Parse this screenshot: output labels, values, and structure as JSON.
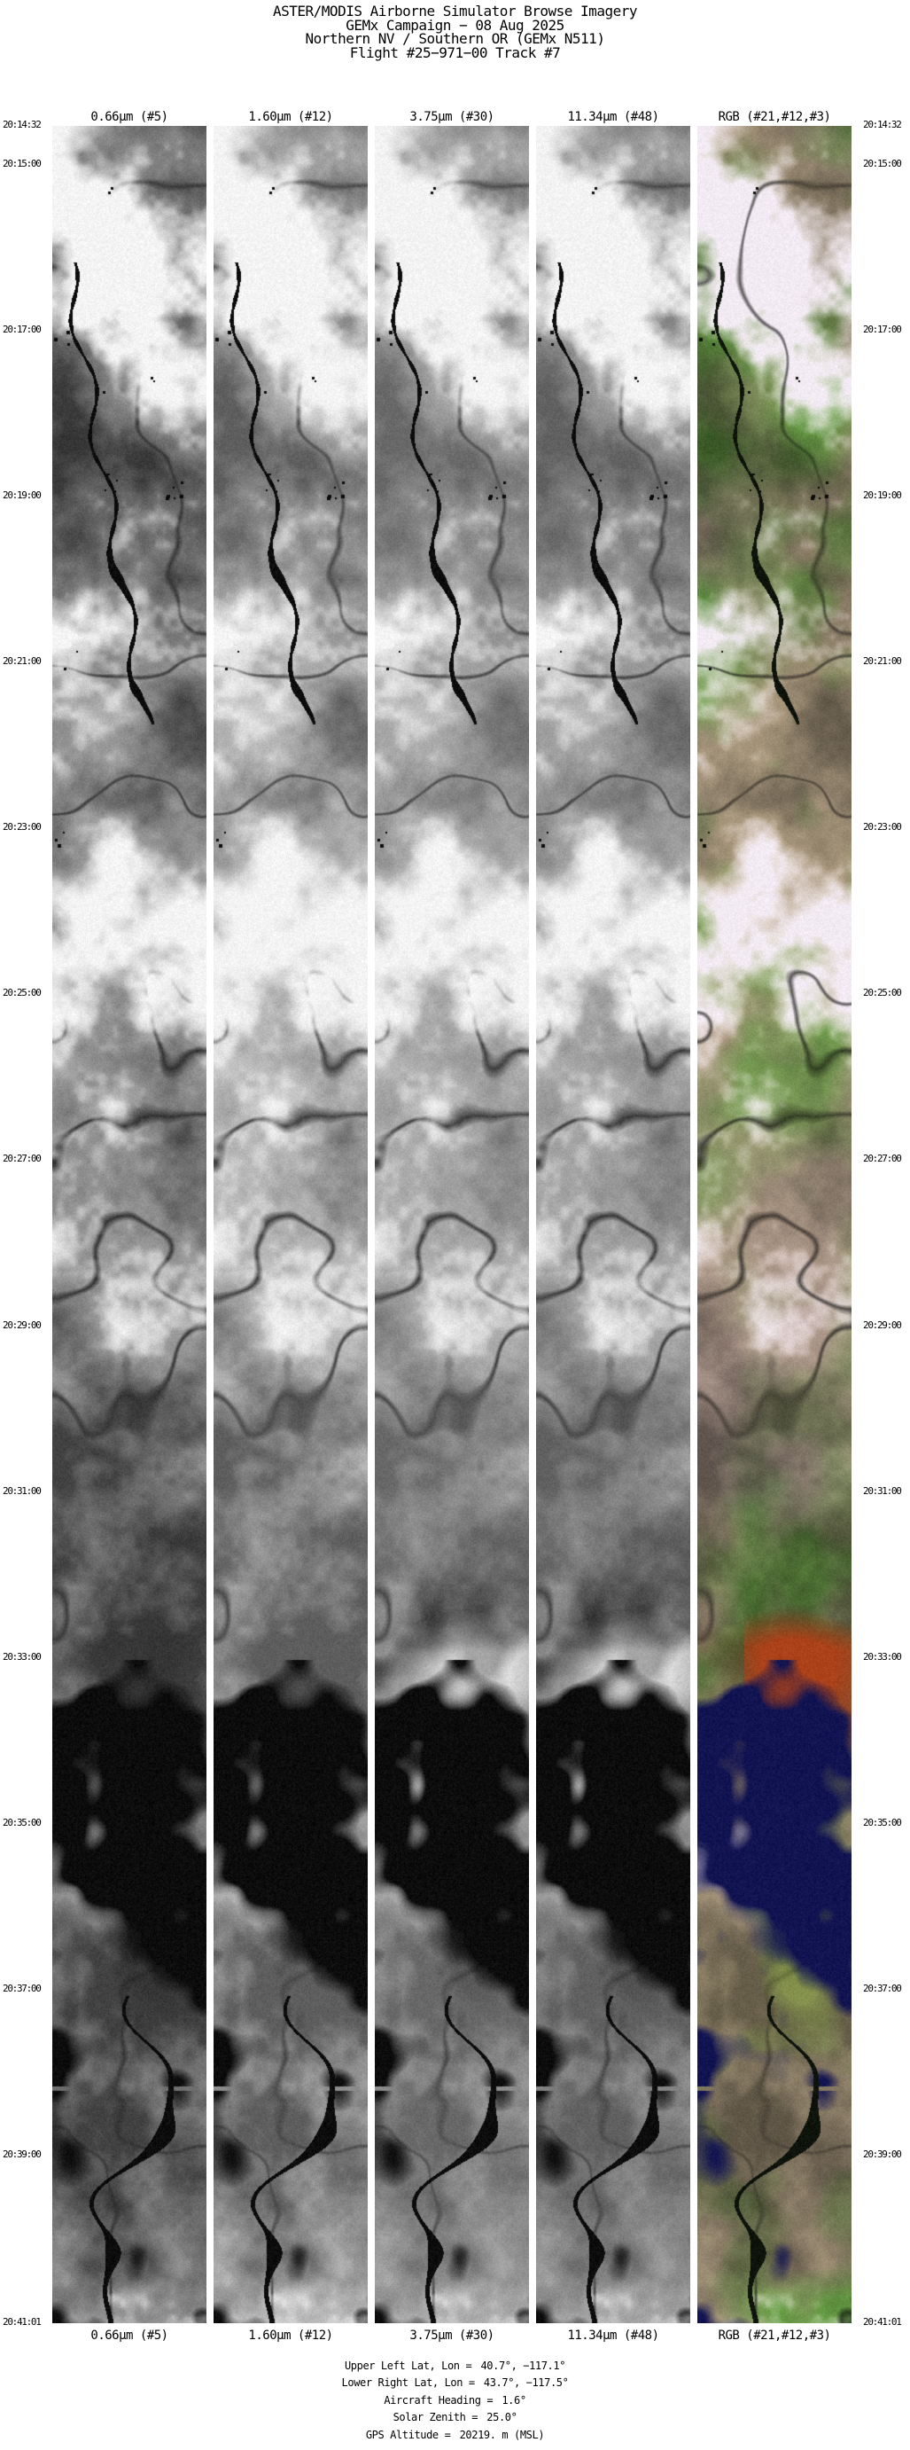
{
  "page": {
    "title": "ASTER/MODIS Airborne Simulator Browse Imagery",
    "background": "#ffffff",
    "text_color": "#000000"
  },
  "header": {
    "lines": [
      "ASTER/MODIS Airborne Simulator Browse Imagery",
      "GEMx Campaign − 08 Aug 2025",
      "Northern NV / Southern OR (GEMx N511)",
      "Flight #25−971−00 Track #7"
    ]
  },
  "bands": {
    "labels": [
      "0.66μm (#5)",
      "1.60μm (#12)",
      "3.75μm (#30)",
      "11.34μm (#48)",
      "RGB (#21,#12,#3)"
    ]
  },
  "timeline": {
    "start": "20:14:32",
    "end": "20:41:01",
    "ticks": [
      "20:14:32",
      "20:15:00",
      "20:17:00",
      "20:19:00",
      "20:21:00",
      "20:23:00",
      "20:25:00",
      "20:27:00",
      "20:29:00",
      "20:31:00",
      "20:33:00",
      "20:35:00",
      "20:37:00",
      "20:39:00",
      "20:41:01"
    ]
  },
  "footer": {
    "entries": [
      {
        "label": "Upper Left Lat, Lon =",
        "value": "40.7°, −117.1°"
      },
      {
        "label": "Lower Right Lat, Lon =",
        "value": "43.7°, −117.5°"
      },
      {
        "label": "Aircraft Heading =",
        "value": "1.6°"
      },
      {
        "label": "Solar Zenith =",
        "value": "25.0°"
      },
      {
        "label": "GPS Altitude =",
        "value": "20219. m (MSL)"
      }
    ]
  }
}
